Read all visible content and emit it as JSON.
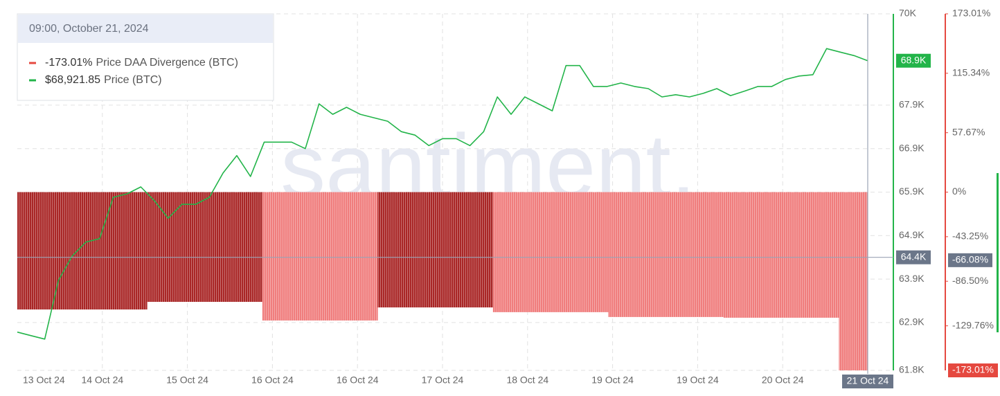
{
  "chart_data": {
    "type": "combo",
    "watermark": "santiment.",
    "xticks": [
      "13 Oct 24",
      "14 Oct 24",
      "15 Oct 24",
      "16 Oct 24",
      "16 Oct 24",
      "17 Oct 24",
      "18 Oct 24",
      "19 Oct 24",
      "19 Oct 24",
      "20 Oct 24"
    ],
    "ylim": [
      61800,
      70000
    ],
    "yticks": [
      {
        "value": 61800,
        "label": "61.8K"
      },
      {
        "value": 62900,
        "label": "62.9K"
      },
      {
        "value": 63900,
        "label": "63.9K"
      },
      {
        "value": 64900,
        "label": "64.9K"
      },
      {
        "value": 65900,
        "label": "65.9K"
      },
      {
        "value": 66900,
        "label": "66.9K"
      },
      {
        "value": 67900,
        "label": "67.9K"
      },
      {
        "value": 70000,
        "label": "70K"
      }
    ],
    "y2lim": [
      -173.01,
      173.01
    ],
    "y2ticks": [
      {
        "value": -129.76,
        "label": "-129.76%"
      },
      {
        "value": -86.5,
        "label": "-86.50%"
      },
      {
        "value": -43.25,
        "label": "-43.25%"
      },
      {
        "value": 0,
        "label": "0%"
      },
      {
        "value": 57.67,
        "label": "57.67%"
      },
      {
        "value": 115.34,
        "label": "115.34%"
      },
      {
        "value": 173.01,
        "label": "173.01%"
      }
    ],
    "grid": true,
    "series": [
      {
        "name": "Price DAA Divergence (BTC)",
        "type": "bar",
        "axis": "y2",
        "color": "#e5483f",
        "last_label": "-173.01%",
        "colors": [
          "#a92626",
          "#a92626",
          "#a92626",
          "#a92626",
          "#a92626",
          "#a92626",
          "#a92626",
          "#a92626",
          "#a92626",
          "#a92626",
          "#a92626",
          "#a92626",
          "#a92626",
          "#a92626",
          "#a92626",
          "#a92626",
          "#a92626",
          "#f07d7d",
          "#f07d7d",
          "#f07d7d",
          "#f07d7d",
          "#f07d7d",
          "#f07d7d",
          "#f07d7d",
          "#f07d7d",
          "#a92626",
          "#a92626",
          "#a92626",
          "#a92626",
          "#a92626",
          "#a92626",
          "#a92626",
          "#a92626",
          "#f07d7d",
          "#f07d7d",
          "#f07d7d",
          "#f07d7d",
          "#f07d7d",
          "#f07d7d",
          "#f07d7d",
          "#f07d7d",
          "#f07d7d",
          "#f07d7d",
          "#f07d7d",
          "#f07d7d",
          "#f07d7d",
          "#f07d7d",
          "#f07d7d",
          "#f07d7d",
          "#f07d7d",
          "#f07d7d",
          "#f07d7d",
          "#f07d7d",
          "#f07d7d",
          "#f07d7d",
          "#f07d7d",
          "#f07d7d",
          "#f07d7d",
          "#f07d7d"
        ],
        "values": [
          -113.9,
          -113.9,
          -113.9,
          -113.9,
          -113.9,
          -113.9,
          -113.9,
          -113.9,
          -113.9,
          -106.5,
          -106.5,
          -106.5,
          -106.5,
          -106.5,
          -106.5,
          -106.5,
          -106.5,
          -124.6,
          -124.6,
          -124.6,
          -124.6,
          -124.6,
          -124.6,
          -124.6,
          -124.6,
          -111.9,
          -111.9,
          -111.9,
          -111.9,
          -111.9,
          -111.9,
          -111.9,
          -111.9,
          -116.5,
          -116.5,
          -116.5,
          -116.5,
          -116.5,
          -116.5,
          -116.5,
          -116.5,
          -121.2,
          -121.2,
          -121.2,
          -121.2,
          -121.2,
          -121.2,
          -121.2,
          -121.2,
          -121.9,
          -121.9,
          -121.9,
          -121.9,
          -121.9,
          -121.9,
          -121.9,
          -121.9,
          -173.01,
          -173.01
        ]
      },
      {
        "name": "Price (BTC)",
        "type": "line",
        "axis": "y",
        "color": "#22b449",
        "last_label": "68.9K",
        "values": [
          62680,
          62600,
          62520,
          63870,
          64430,
          64750,
          64830,
          65780,
          65860,
          66020,
          65700,
          65300,
          65620,
          65620,
          65780,
          66340,
          66740,
          66260,
          67050,
          67050,
          67050,
          66900,
          67930,
          67690,
          67850,
          67690,
          67610,
          67530,
          67290,
          67210,
          66970,
          67130,
          67130,
          66970,
          67290,
          68090,
          67690,
          68090,
          67930,
          67770,
          68810,
          68810,
          68330,
          68330,
          68410,
          68330,
          68280,
          68090,
          68140,
          68090,
          68170,
          68280,
          68120,
          68220,
          68330,
          68330,
          68490,
          68570,
          68600,
          69200,
          69120,
          69040,
          68921.85
        ]
      }
    ],
    "tooltip": {
      "title": "09:00, October 21, 2024",
      "value_labels": [
        "-173.01%",
        "$68,921.85"
      ]
    },
    "crosshair": {
      "y": {
        "value": 64400,
        "label": "64.4K"
      },
      "y2": {
        "value": -66.08,
        "label": "-66.08%"
      },
      "x_label": "21 Oct 24"
    }
  }
}
